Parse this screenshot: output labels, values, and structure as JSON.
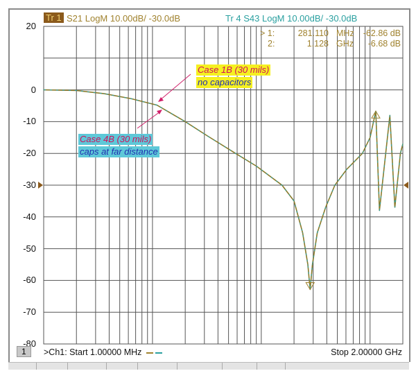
{
  "header": {
    "trace1_badge": "Tr 1",
    "trace1_desc": "S21 LogM 10.00dB/  -30.0dB",
    "trace4_desc": "Tr  4   S43 LogM 10.00dB/  -30.0dB"
  },
  "markers": [
    {
      "label": "> 1:",
      "freq": "281.110",
      "unit": "MHz",
      "value": "-62.86 dB"
    },
    {
      "label": "2:",
      "freq": "1.128",
      "unit": "GHz",
      "value": "-6.68 dB"
    }
  ],
  "footer": {
    "channel_badge": "1",
    "start": ">Ch1:  Start   1.00000 MHz",
    "stop": "Stop  2.00000 GHz"
  },
  "annotations": [
    {
      "line1": "Case 1B (30 mils)",
      "line2": "no capacitors"
    },
    {
      "line1": "Case 4B (30 mils)",
      "line2": "caps at far distance"
    }
  ],
  "colors": {
    "trace1": "#8a7a2a",
    "trace4": "#2aa0a0",
    "ann1_bg": "#f5f020",
    "ann2_bg": "#5ec8d8",
    "ann_title": "#d0105a",
    "ann_text": "#2030b0",
    "arrow": "#d0206a"
  },
  "chart_data": {
    "type": "line",
    "xscale": "log",
    "xlim_mhz": [
      1,
      2000
    ],
    "ylim": [
      -80,
      20
    ],
    "yticks": [
      20,
      0,
      -10,
      -20,
      -30,
      -40,
      -50,
      -60,
      -70,
      -80
    ],
    "ytick_labels": [
      "20",
      "0",
      "-10",
      "-20",
      "-30",
      "-40",
      "-50",
      "-60",
      "-70",
      "-80"
    ],
    "reference_level_db": -30,
    "grid": true,
    "series": [
      {
        "name": "S21 (Tr 1)",
        "x_mhz": [
          1,
          2,
          3.6,
          6.4,
          11,
          20,
          32,
          58,
          90,
          155,
          200,
          240,
          268,
          281.11,
          295,
          327,
          390,
          475,
          610,
          850,
          1000,
          1128,
          1220,
          1520,
          1690,
          1900,
          2000
        ],
        "db": [
          0,
          -0.2,
          -1.2,
          -2.8,
          -4.8,
          -10,
          -14.5,
          -20,
          -24,
          -30,
          -35,
          -45,
          -55,
          -62.86,
          -55,
          -45,
          -37,
          -30,
          -25,
          -20,
          -15,
          -6.68,
          -38,
          -8,
          -37,
          -20,
          -17
        ]
      },
      {
        "name": "S43 (Tr 4)",
        "x_mhz": [
          1,
          2,
          3.6,
          6.4,
          11,
          20,
          32,
          58,
          90,
          155,
          200,
          240,
          268,
          281.11,
          295,
          327,
          390,
          475,
          610,
          850,
          1000,
          1128,
          1220,
          1520,
          1690,
          1900,
          2000
        ],
        "db": [
          0,
          -0.2,
          -1.2,
          -2.8,
          -4.8,
          -10,
          -14.5,
          -20,
          -24,
          -30,
          -35,
          -45,
          -55,
          -62.86,
          -55,
          -45,
          -37,
          -30,
          -25,
          -20,
          -15,
          -6.68,
          -38,
          -8,
          -37,
          -20,
          -17
        ]
      }
    ]
  }
}
